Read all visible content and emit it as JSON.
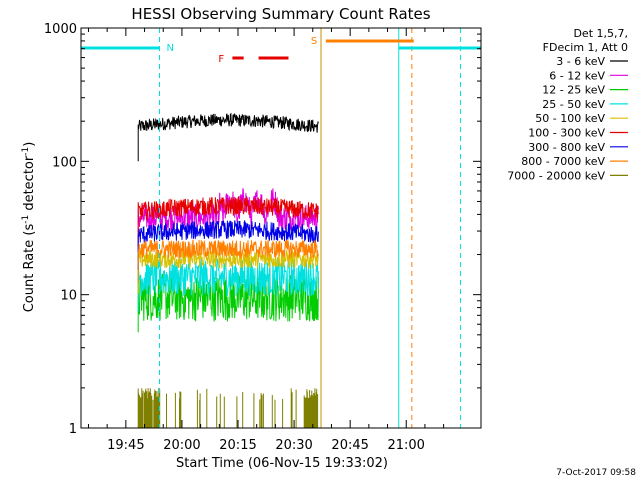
{
  "chart_data": {
    "type": "line",
    "title": "HESSI Observing Summary Count Rates",
    "xlabel": "Start Time (06-Nov-15 19:33:02)",
    "ylabel_main": "Count Rate (s",
    "ylabel_sup1": "-1",
    "ylabel_mid": " detector",
    "ylabel_sup2": "-1",
    "ylabel_end": ")",
    "ylog": true,
    "ylim": [
      1,
      1000
    ],
    "xlim_minutes": [
      0,
      107
    ],
    "x_ticks": [
      {
        "t": 12,
        "label": "19:45"
      },
      {
        "t": 27,
        "label": "20:00"
      },
      {
        "t": 42,
        "label": "20:15"
      },
      {
        "t": 57,
        "label": "20:30"
      },
      {
        "t": 72,
        "label": "20:45"
      },
      {
        "t": 87,
        "label": "21:00"
      }
    ],
    "y_ticks": [
      {
        "v": 1,
        "label": "1"
      },
      {
        "v": 10,
        "label": "10"
      },
      {
        "v": 100,
        "label": "100"
      },
      {
        "v": 1000,
        "label": "1000"
      }
    ],
    "legend_header": [
      "Det 1,5,7,",
      "FDecim 1, Att 0"
    ],
    "series": [
      {
        "name": "3 - 6 keV",
        "color": "#000000",
        "level": 182,
        "amp": 0.05,
        "trend": 0.12
      },
      {
        "name": "6 - 12 keV",
        "color": "#e000e0",
        "level": 38,
        "amp": 0.1,
        "trend": 0.0
      },
      {
        "name": "12 - 25 keV",
        "color": "#00cc00",
        "level": 9.5,
        "amp": 0.18,
        "trend": 0.0
      },
      {
        "name": "25 - 50 keV",
        "color": "#00e0e0",
        "level": 13.5,
        "amp": 0.14,
        "trend": 0.0
      },
      {
        "name": "50 - 100 keV",
        "color": "#d8c000",
        "level": 18.5,
        "amp": 0.07,
        "trend": 0.0
      },
      {
        "name": "100 - 300 keV",
        "color": "#e60000",
        "level": 42,
        "amp": 0.07,
        "trend": -0.1
      },
      {
        "name": "300 - 800 keV",
        "color": "#0000e6",
        "level": 28,
        "amp": 0.07,
        "trend": -0.1
      },
      {
        "name": "800 - 7000 keV",
        "color": "#ff8000",
        "level": 22,
        "amp": 0.07,
        "trend": 0.0
      },
      {
        "name": "7000 - 20000 keV",
        "color": "#808000",
        "level": 1.0,
        "amp": 0.0,
        "trend": 0.0
      }
    ],
    "data_interval_minutes": [
      15.3,
      63.5
    ],
    "flags": [
      {
        "label": "N",
        "color": "#00e0e0",
        "segments": [
          [
            0,
            21
          ],
          [
            85,
            107
          ]
        ]
      },
      {
        "label": "S",
        "color": "#ff8000",
        "segments": [
          [
            65.5,
            89
          ]
        ]
      },
      {
        "label": "F",
        "color": "#e60000",
        "segments": [
          [
            40.5,
            43.5
          ],
          [
            47.5,
            55.5
          ]
        ]
      }
    ],
    "vertical_lines": [
      {
        "t": 21,
        "color": "#00e0e0",
        "dashed": true
      },
      {
        "t": 64.2,
        "color": "#c89000",
        "dashed": false
      },
      {
        "t": 85,
        "color": "#00e0e0",
        "dashed": false
      },
      {
        "t": 88.5,
        "color": "#ff8000",
        "dashed": true
      },
      {
        "t": 101.5,
        "color": "#00e0e0",
        "dashed": true
      }
    ]
  },
  "footer_timestamp": "7-Oct-2017 09:58"
}
